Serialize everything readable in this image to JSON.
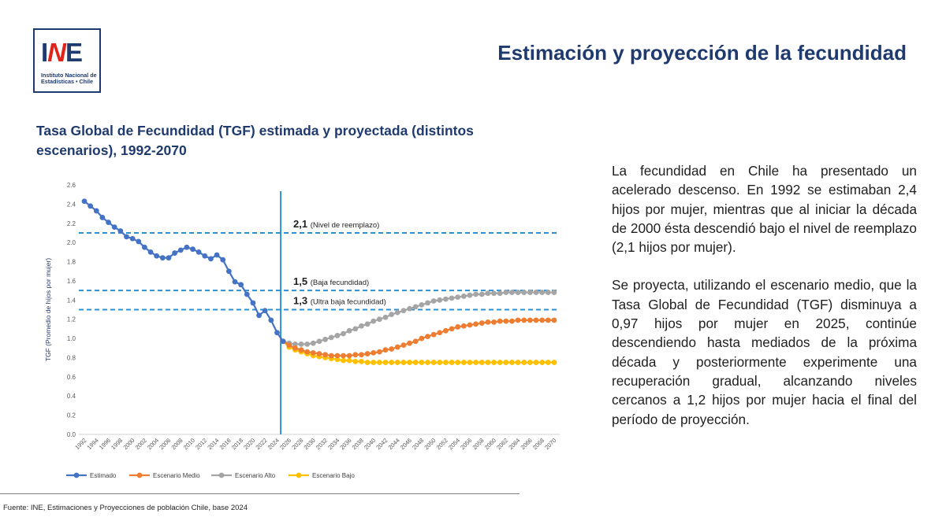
{
  "header": {
    "logo_mark_left": "I",
    "logo_mark_accent": "N",
    "logo_mark_right": "E",
    "logo_caption_line1": "Instituto Nacional de",
    "logo_caption_line2": "Estadísticas • Chile",
    "page_title": "Estimación y proyección de la fecundidad"
  },
  "colors": {
    "title": "#1f3a6e",
    "estimado": "#4472c4",
    "medio": "#ed7d31",
    "alto": "#a5a5a5",
    "bajo": "#ffc000",
    "ref_line": "#2e8fd0",
    "vline": "#2e8fd0"
  },
  "chart_data": {
    "type": "line",
    "title": "Tasa Global de Fecundidad (TGF) estimada y proyectada (distintos escenarios), 1992-2070",
    "ylabel": "TGF (Promedio de hijos por mujer)",
    "xlabel": "",
    "ylim": [
      0,
      2.6
    ],
    "yticks": [
      "0.0",
      "0.2",
      "0.4",
      "0.6",
      "0.8",
      "1.0",
      "1.2",
      "1.4",
      "1.6",
      "1.8",
      "2.0",
      "2.2",
      "2.4",
      "2.6"
    ],
    "x_start": 1992,
    "x_end": 2070,
    "xtick_step": 2,
    "projection_start_year": 2025,
    "legend_position": "bottom",
    "reference_lines": [
      {
        "value": 2.1,
        "label_bold": "2,1",
        "label": "(Nivel de reemplazo)"
      },
      {
        "value": 1.5,
        "label_bold": "1,5",
        "label": "(Baja fecundidad)"
      },
      {
        "value": 1.3,
        "label_bold": "1,3",
        "label": "(Ultra baja fecundidad)"
      }
    ],
    "series": [
      {
        "name": "Estimado",
        "color_key": "estimado",
        "start_year": 1992,
        "values": [
          2.43,
          2.38,
          2.33,
          2.26,
          2.21,
          2.16,
          2.12,
          2.06,
          2.04,
          2.01,
          1.95,
          1.9,
          1.86,
          1.84,
          1.84,
          1.89,
          1.92,
          1.95,
          1.93,
          1.9,
          1.86,
          1.83,
          1.87,
          1.82,
          1.7,
          1.59,
          1.56,
          1.46,
          1.37,
          1.24,
          1.29,
          1.19,
          1.06,
          0.97
        ]
      },
      {
        "name": "Escenario Medio",
        "color_key": "medio",
        "start_year": 2025,
        "values": [
          0.97,
          0.93,
          0.9,
          0.88,
          0.86,
          0.85,
          0.84,
          0.83,
          0.82,
          0.82,
          0.82,
          0.82,
          0.83,
          0.83,
          0.84,
          0.85,
          0.86,
          0.88,
          0.89,
          0.91,
          0.93,
          0.95,
          0.97,
          1.0,
          1.02,
          1.04,
          1.06,
          1.08,
          1.1,
          1.12,
          1.13,
          1.14,
          1.15,
          1.16,
          1.17,
          1.17,
          1.18,
          1.18,
          1.18,
          1.19,
          1.19,
          1.19,
          1.19,
          1.19,
          1.19,
          1.19
        ]
      },
      {
        "name": "Escenario Alto",
        "color_key": "alto",
        "start_year": 2025,
        "values": [
          0.97,
          0.95,
          0.94,
          0.94,
          0.94,
          0.95,
          0.97,
          0.99,
          1.01,
          1.03,
          1.05,
          1.08,
          1.1,
          1.13,
          1.15,
          1.18,
          1.2,
          1.22,
          1.25,
          1.27,
          1.29,
          1.31,
          1.33,
          1.35,
          1.37,
          1.39,
          1.4,
          1.41,
          1.42,
          1.43,
          1.44,
          1.45,
          1.46,
          1.46,
          1.47,
          1.47,
          1.47,
          1.48,
          1.48,
          1.48,
          1.48,
          1.48,
          1.48,
          1.48,
          1.48,
          1.48
        ]
      },
      {
        "name": "Escenario Bajo",
        "color_key": "bajo",
        "start_year": 2025,
        "values": [
          0.97,
          0.91,
          0.88,
          0.86,
          0.84,
          0.82,
          0.81,
          0.8,
          0.79,
          0.78,
          0.77,
          0.77,
          0.76,
          0.76,
          0.75,
          0.75,
          0.75,
          0.75,
          0.75,
          0.75,
          0.75,
          0.75,
          0.75,
          0.75,
          0.75,
          0.75,
          0.75,
          0.75,
          0.75,
          0.75,
          0.75,
          0.75,
          0.75,
          0.75,
          0.75,
          0.75,
          0.75,
          0.75,
          0.75,
          0.75,
          0.75,
          0.75,
          0.75,
          0.75,
          0.75,
          0.75
        ]
      }
    ]
  },
  "body": {
    "paragraph1": "La fecundidad en Chile ha presentado un acelerado descenso. En 1992 se estimaban 2,4 hijos por mujer, mientras que al iniciar la década de 2000 ésta descendió bajo el nivel de reemplazo (2,1 hijos por mujer).",
    "paragraph2": "Se proyecta, utilizando el escenario medio, que la Tasa Global de Fecundidad (TGF) disminuya a 0,97 hijos por mujer en 2025, continúe descendiendo hasta mediados de la próxima década y posteriormente experimente una recuperación gradual, alcanzando niveles cercanos a 1,2 hijos por mujer hacia el final del período de proyección."
  },
  "footer": {
    "source": "Fuente: INE, Estimaciones y Proyecciones de población Chile, base 2024"
  }
}
